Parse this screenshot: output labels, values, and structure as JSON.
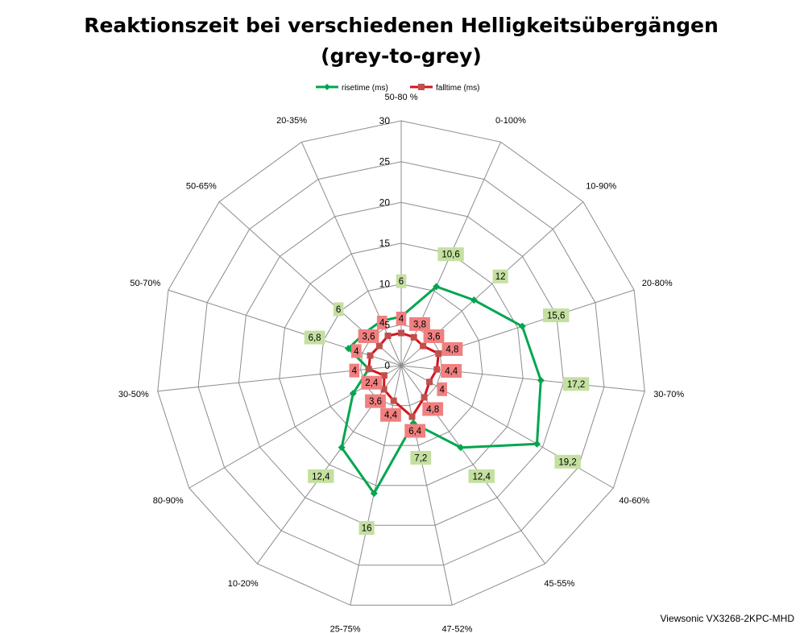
{
  "chart_data": {
    "type": "radar",
    "title_lines": [
      "Reaktionszeit bei verschiedenen Helligkeitsübergängen",
      "(grey-to-grey)"
    ],
    "categories": [
      "50-80 %",
      "0-100%",
      "10-90%",
      "20-80%",
      "30-70%",
      "40-60%",
      "45-55%",
      "47-52%",
      "25-75%",
      "10-20%",
      "80-90%",
      "30-50%",
      "50-70%",
      "50-65%",
      "20-35%"
    ],
    "r_ticks": [
      "0",
      "5",
      "10",
      "15",
      "20",
      "25",
      "30"
    ],
    "r_range": [
      0,
      30
    ],
    "grid": true,
    "legend_position": "top",
    "series": [
      {
        "name": "risetime (ms)",
        "color": "#00a64f",
        "marker": "diamond",
        "values": [
          6,
          10.6,
          12,
          15.6,
          17.2,
          19.2,
          12.4,
          7.2,
          16,
          12.4,
          6.8,
          4,
          6.8,
          6,
          6
        ],
        "labels": [
          "6",
          "10,6",
          "12",
          "15,6",
          "17,2",
          "19,2",
          "12,4",
          "7,2",
          "16",
          "12,4",
          "",
          "",
          "6,8",
          "6",
          ""
        ],
        "label_color": "#c4e0a0"
      },
      {
        "name": "falltime (ms)",
        "color": "#d4141b",
        "marker": "square",
        "values": [
          4,
          3.8,
          3.6,
          4.8,
          4.4,
          4,
          4.8,
          6.4,
          4.4,
          3.6,
          2.4,
          4,
          4,
          3.6,
          4
        ],
        "labels": [
          "4",
          "3,8",
          "3,6",
          "4,8",
          "4,4",
          "4",
          "4,8",
          "6,4",
          "4,4",
          "3,6",
          "2,4",
          "4",
          "4",
          "3,6",
          "4"
        ],
        "label_color": "#f08080"
      }
    ]
  },
  "footer": {
    "credit": "Viewsonic VX3268-2KPC-MHD"
  },
  "colors": {
    "grid": "#8c8c8c",
    "background": "#ffffff"
  }
}
